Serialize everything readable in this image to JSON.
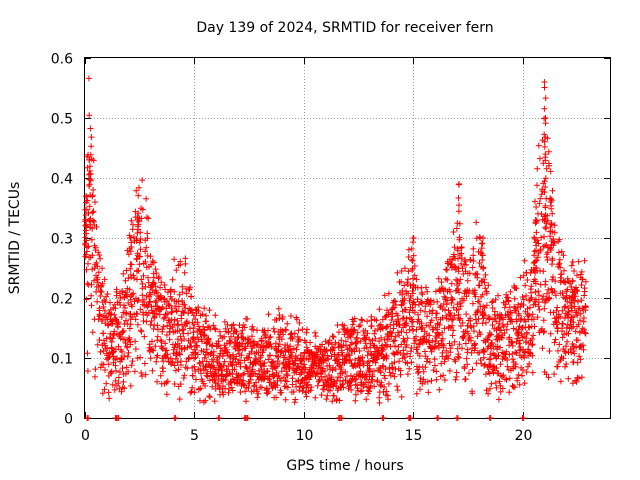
{
  "chart_data": {
    "type": "scatter",
    "title": "Day 139 of 2024, SRMTID for receiver fern",
    "xlabel": "GPS time / hours",
    "ylabel": "SRMTID / TECUs",
    "xlim": [
      0,
      24
    ],
    "ylim": [
      0,
      0.6
    ],
    "x_ticks": [
      0,
      5,
      10,
      15,
      20
    ],
    "x_tick_labels": [
      "0",
      "5",
      "10",
      "15",
      "20"
    ],
    "y_ticks": [
      0,
      0.1,
      0.2,
      0.3,
      0.4,
      0.5,
      0.6
    ],
    "y_tick_labels": [
      "0",
      "0.1",
      "0.2",
      "0.3",
      "0.4",
      "0.5",
      "0.6"
    ],
    "grid": true,
    "marker": "plus",
    "color": "#ff0000",
    "series": [
      {
        "name": "SRMTID",
        "trend_x": [
          0,
          0.15,
          0.3,
          0.5,
          0.8,
          1.2,
          1.6,
          2.0,
          2.4,
          2.8,
          3.2,
          3.6,
          4.0,
          4.6,
          5.0,
          5.5,
          6.0,
          6.5,
          7.0,
          7.5,
          8.0,
          8.5,
          9.0,
          9.5,
          10.0,
          10.5,
          11.0,
          11.5,
          12.0,
          12.5,
          13.0,
          13.5,
          14.0,
          14.5,
          15.0,
          15.5,
          16.0,
          16.5,
          17.0,
          17.5,
          18.0,
          18.5,
          19.0,
          19.5,
          20.0,
          20.4,
          20.8,
          21.0,
          21.3,
          21.6,
          22.0,
          22.4,
          22.9
        ],
        "trend_y": [
          0.26,
          0.33,
          0.3,
          0.22,
          0.15,
          0.13,
          0.14,
          0.18,
          0.24,
          0.22,
          0.16,
          0.14,
          0.15,
          0.16,
          0.12,
          0.11,
          0.1,
          0.1,
          0.09,
          0.1,
          0.09,
          0.1,
          0.11,
          0.1,
          0.09,
          0.08,
          0.08,
          0.09,
          0.1,
          0.1,
          0.1,
          0.11,
          0.13,
          0.15,
          0.17,
          0.13,
          0.14,
          0.17,
          0.19,
          0.18,
          0.2,
          0.13,
          0.12,
          0.14,
          0.14,
          0.18,
          0.28,
          0.3,
          0.27,
          0.19,
          0.16,
          0.15,
          0.16
        ],
        "spikes": [
          {
            "x": 0.2,
            "y": 0.43
          },
          {
            "x": 0.05,
            "y": 0.37
          },
          {
            "x": 2.4,
            "y": 0.33
          },
          {
            "x": 2.1,
            "y": 0.3
          },
          {
            "x": 15.0,
            "y": 0.3
          },
          {
            "x": 17.1,
            "y": 0.39
          },
          {
            "x": 18.2,
            "y": 0.3
          },
          {
            "x": 20.6,
            "y": 0.33
          },
          {
            "x": 21.0,
            "y": 0.56
          },
          {
            "x": 21.05,
            "y": 0.5
          },
          {
            "x": 21.3,
            "y": 0.36
          },
          {
            "x": 22.3,
            "y": 0.26
          }
        ],
        "zero_points": [
          0.1,
          1.4,
          1.5,
          4.1,
          6.1,
          7.3,
          7.4,
          11.6,
          11.7,
          13.6,
          14.8,
          14.85,
          16.1,
          17.0,
          18.5,
          20.0
        ]
      }
    ]
  }
}
